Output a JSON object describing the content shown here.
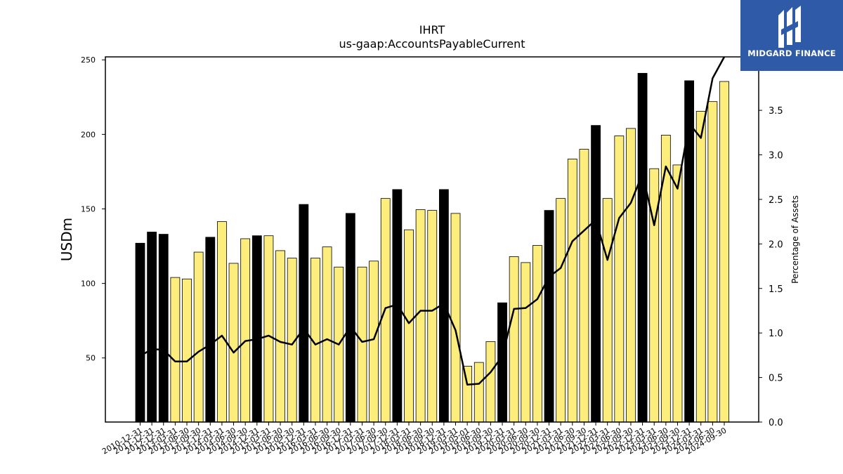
{
  "brand": {
    "name": "MIDGARD FINANCE",
    "bg_color": "#2f5aa8"
  },
  "chart_data": {
    "type": "bar",
    "title": "IHRT",
    "subtitle": "us-gaap:AccountsPayableCurrent",
    "ylabel": "USDm",
    "y2label": "Percentage of Assets",
    "ylim": [
      7,
      252
    ],
    "y2lim": [
      0,
      4.1
    ],
    "yticks": [
      50,
      100,
      150,
      200,
      250
    ],
    "y2ticks": [
      0.0,
      0.5,
      1.0,
      1.5,
      2.0,
      2.5,
      3.0,
      3.5,
      4.0
    ],
    "colors": {
      "annual": "#000000",
      "quarterly": "#fded7c",
      "line": "#000000"
    },
    "categories": [
      "2010-12-31",
      "2011-12-31",
      "2012-12-31",
      "2013-03-31",
      "2013-06-30",
      "2013-09-30",
      "2013-12-31",
      "2014-03-31",
      "2014-06-30",
      "2014-09-30",
      "2014-12-31",
      "2015-03-31",
      "2015-06-30",
      "2015-09-30",
      "2015-12-31",
      "2016-03-31",
      "2016-06-30",
      "2016-09-30",
      "2016-12-31",
      "2017-03-31",
      "2017-06-30",
      "2017-09-30",
      "2017-12-31",
      "2018-03-31",
      "2018-06-30",
      "2018-09-30",
      "2018-12-31",
      "2019-03-31",
      "2019-05-01",
      "2019-06-30",
      "2019-09-30",
      "2019-12-31",
      "2020-03-31",
      "2020-06-30",
      "2020-09-30",
      "2020-12-31",
      "2021-03-31",
      "2021-06-30",
      "2021-09-30",
      "2021-12-31",
      "2022-03-31",
      "2022-06-30",
      "2022-09-30",
      "2022-12-31",
      "2023-03-31",
      "2023-06-30",
      "2023-09-30",
      "2023-12-31",
      "2024-03-31",
      "2024-06-30",
      "2024-09-30"
    ],
    "series": [
      {
        "kind": "bars",
        "values": [
          127,
          134.5,
          133,
          104,
          103,
          121,
          131,
          141.5,
          113.5,
          130,
          132,
          132,
          122,
          117,
          153,
          117,
          124.5,
          111,
          147,
          111,
          115,
          157,
          163,
          136,
          149.5,
          149,
          163,
          147,
          44.5,
          47,
          61,
          87,
          118,
          114,
          125.5,
          149,
          157,
          183.5,
          190,
          206,
          157,
          199,
          204,
          241,
          177,
          199.5,
          179.5,
          236,
          215.5,
          222,
          235.5
        ],
        "annual": [
          true,
          true,
          true,
          false,
          false,
          false,
          true,
          false,
          false,
          false,
          true,
          false,
          false,
          false,
          true,
          false,
          false,
          false,
          true,
          false,
          false,
          false,
          true,
          false,
          false,
          false,
          true,
          false,
          false,
          false,
          false,
          true,
          false,
          false,
          false,
          true,
          false,
          false,
          false,
          true,
          false,
          false,
          false,
          true,
          false,
          false,
          false,
          true,
          false,
          false,
          false
        ]
      },
      {
        "kind": "line",
        "axis": "right",
        "values": [
          0.74,
          0.82,
          0.81,
          0.68,
          0.68,
          0.79,
          0.87,
          0.97,
          0.78,
          0.91,
          0.93,
          0.97,
          0.9,
          0.87,
          1.05,
          0.87,
          0.93,
          0.87,
          1.07,
          0.9,
          0.93,
          1.28,
          1.32,
          1.11,
          1.25,
          1.25,
          1.33,
          1.03,
          0.42,
          0.43,
          0.56,
          0.74,
          1.27,
          1.28,
          1.38,
          1.63,
          1.73,
          2.03,
          2.15,
          2.27,
          1.82,
          2.29,
          2.46,
          2.79,
          2.21,
          2.87,
          2.62,
          3.35,
          3.19,
          3.86,
          4.1
        ]
      }
    ]
  }
}
